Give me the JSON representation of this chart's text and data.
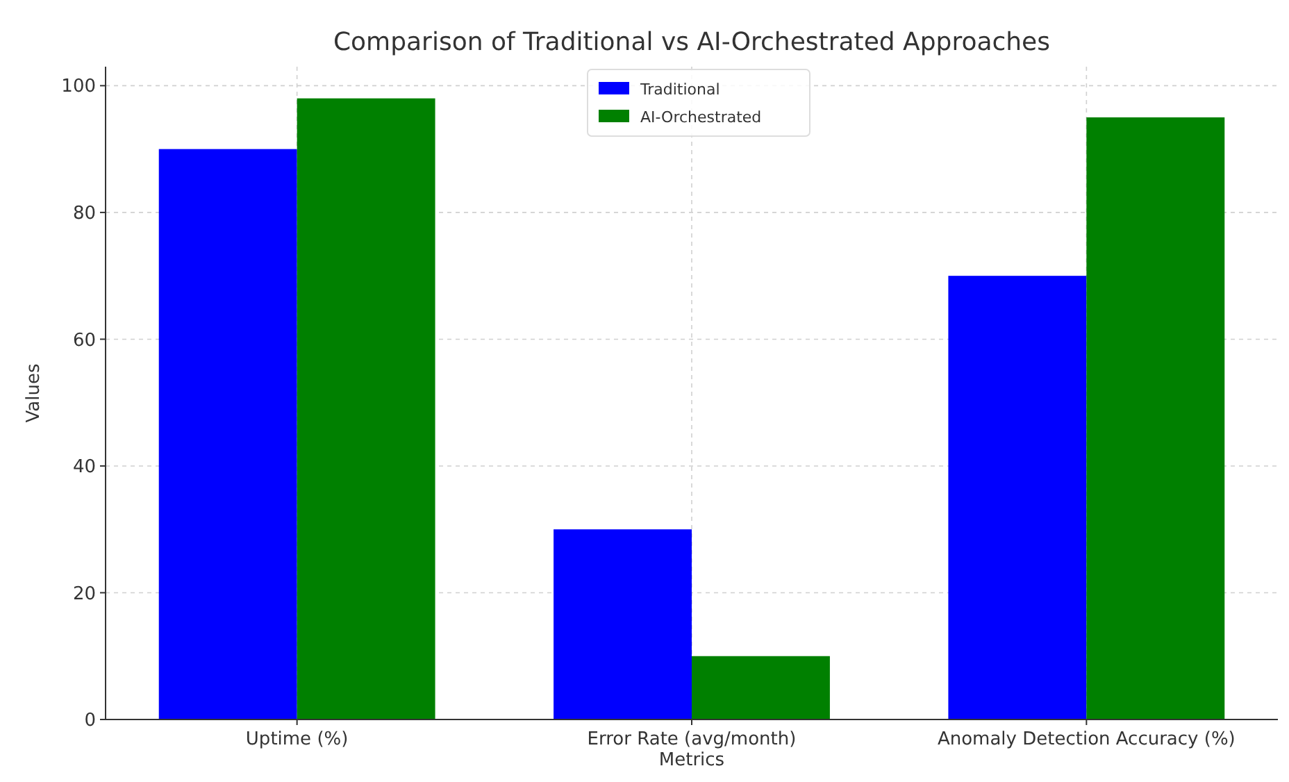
{
  "chart_data": {
    "type": "bar",
    "title": "Comparison of Traditional vs AI-Orchestrated Approaches",
    "xlabel": "Metrics",
    "ylabel": "Values",
    "categories": [
      "Uptime (%)",
      "Error Rate (avg/month)",
      "Anomaly Detection Accuracy (%)"
    ],
    "series": [
      {
        "name": "Traditional",
        "color": "#0000ff",
        "values": [
          90,
          30,
          70
        ]
      },
      {
        "name": "AI-Orchestrated",
        "color": "#008000",
        "values": [
          98,
          10,
          95
        ]
      }
    ],
    "ylim": [
      0,
      103
    ],
    "yticks": [
      0,
      20,
      40,
      60,
      80,
      100
    ],
    "grid": true,
    "legend": "top"
  }
}
